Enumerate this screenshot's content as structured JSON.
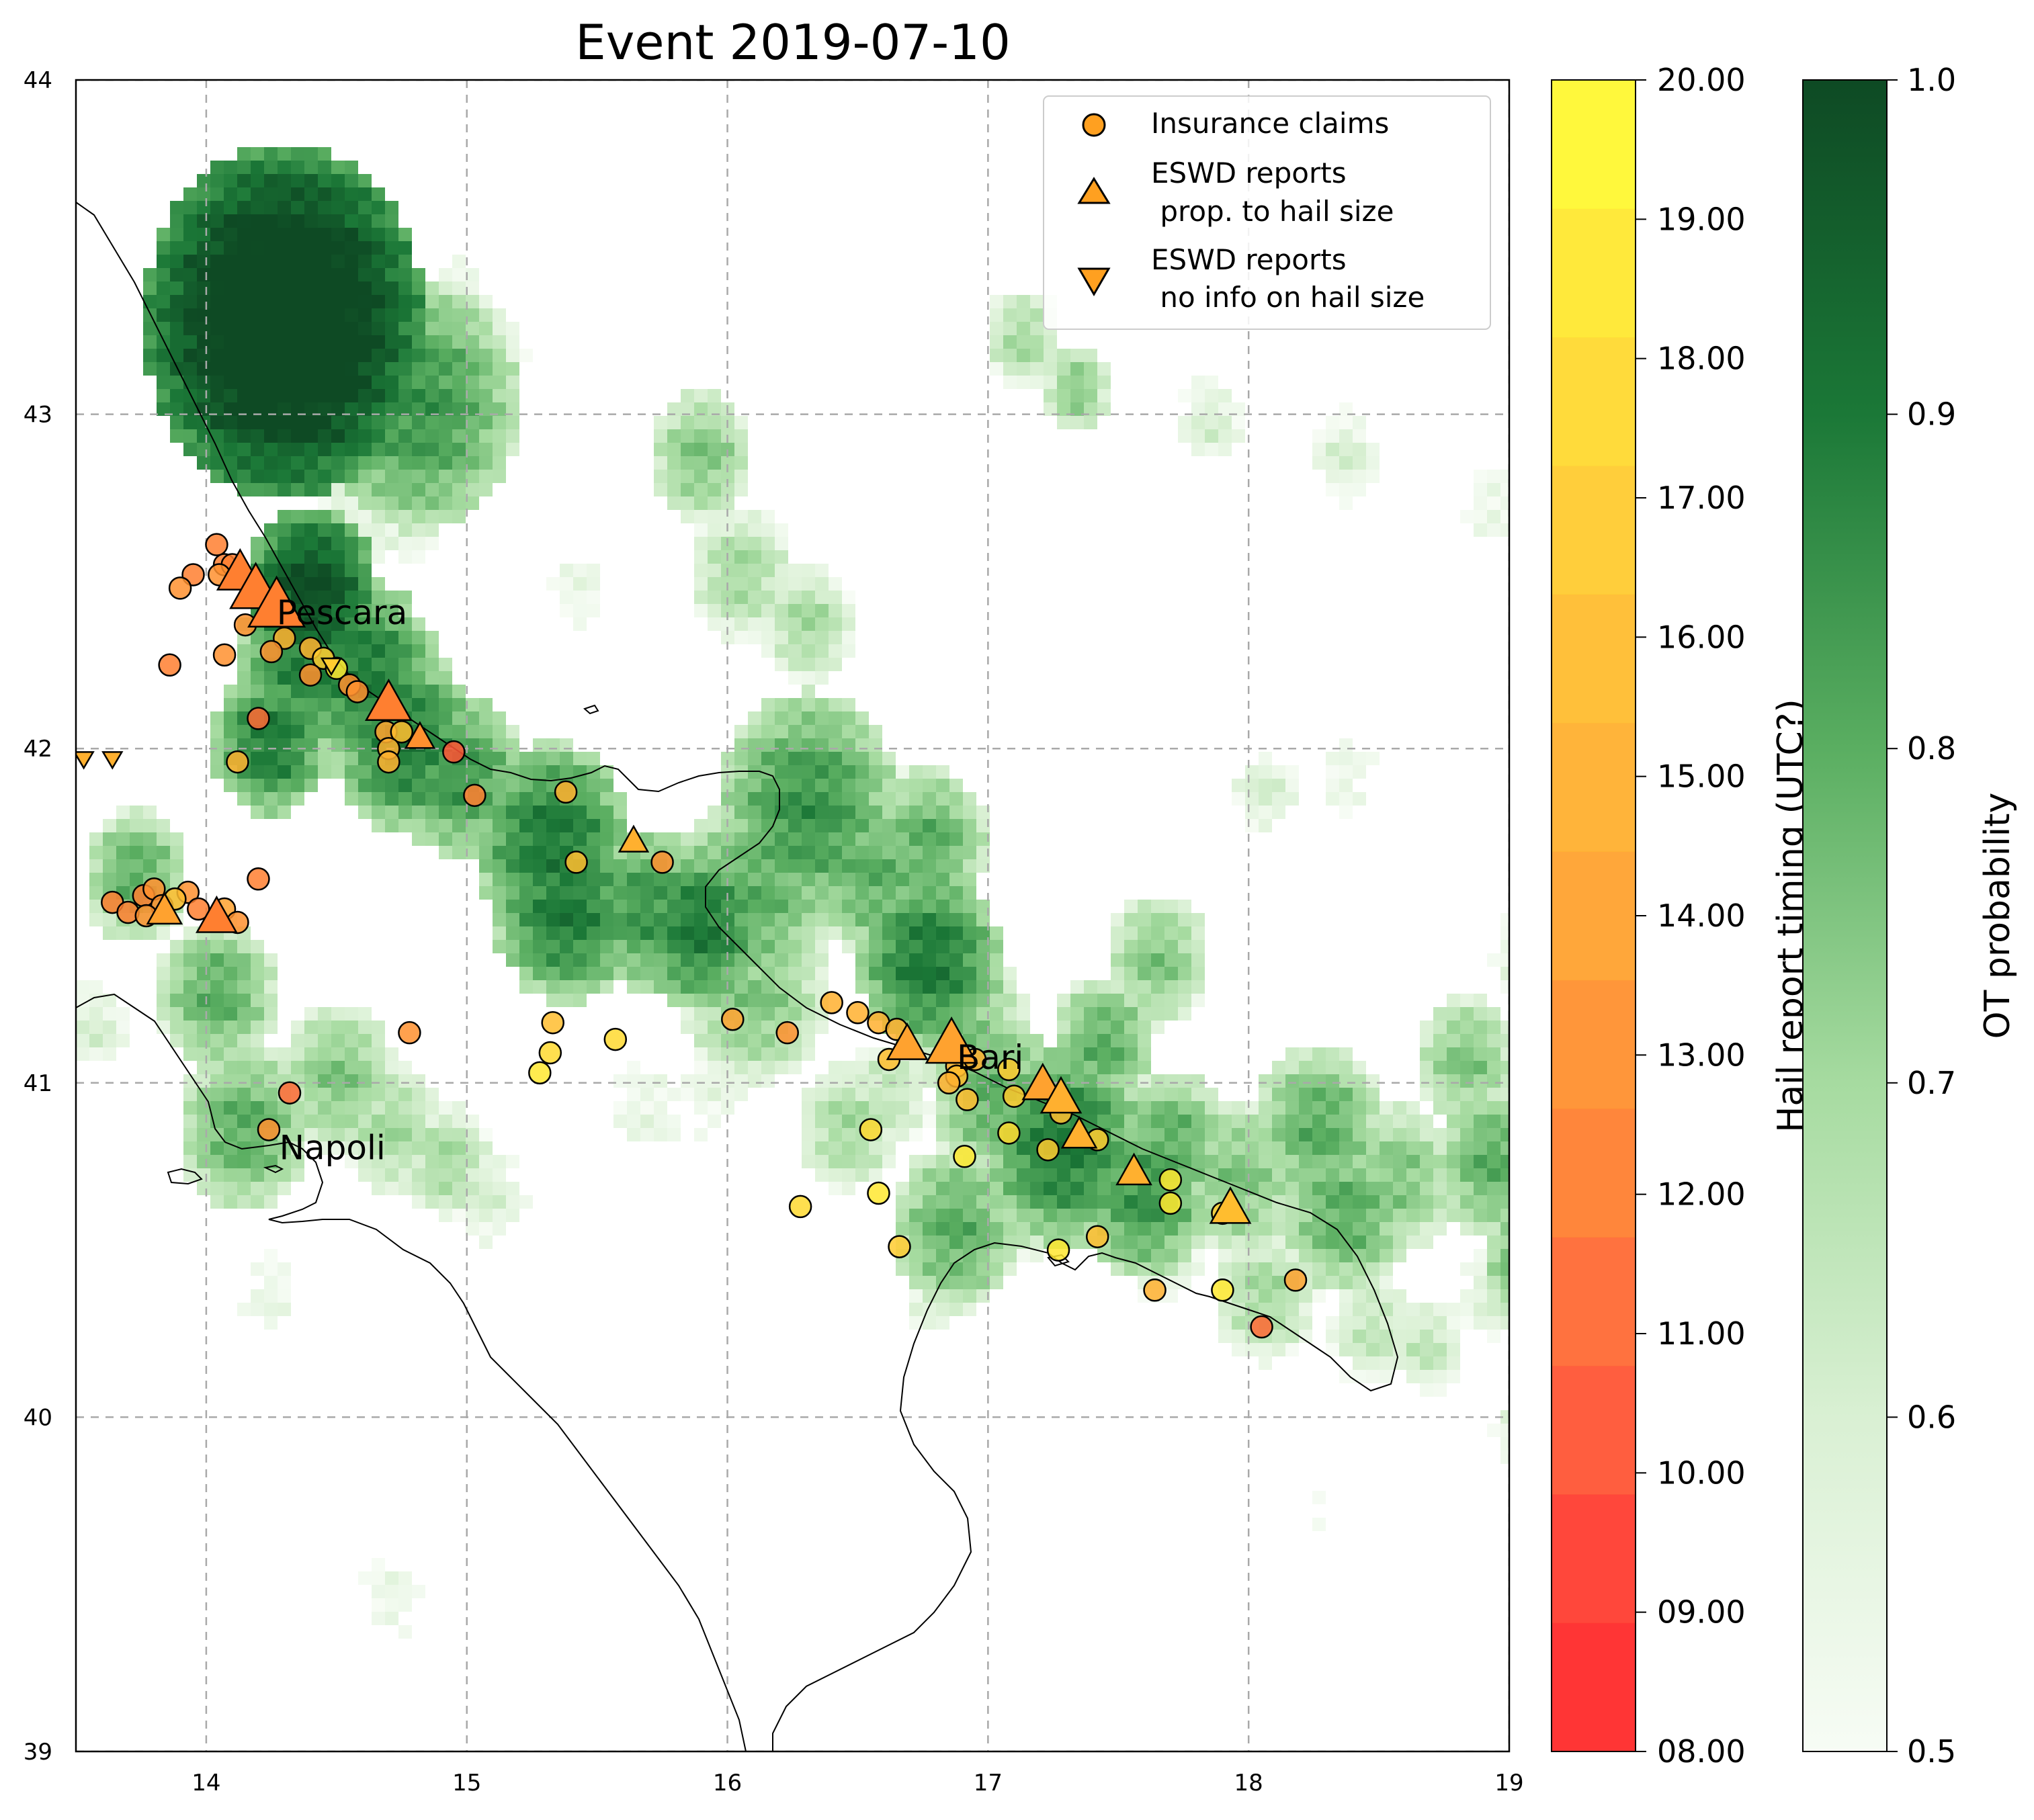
{
  "title": "Event 2019-07-10",
  "map": {
    "lon_ticks": [
      "14",
      "15",
      "16",
      "17",
      "18",
      "19"
    ],
    "lat_ticks": [
      "39",
      "40",
      "41",
      "42",
      "43",
      "44"
    ],
    "lon_range": [
      13.5,
      19
    ],
    "lat_range": [
      39,
      44
    ],
    "cities": [
      {
        "name": "Pescara",
        "lon": 14.26,
        "lat": 42.4
      },
      {
        "name": "Bari",
        "lon": 16.87,
        "lat": 41.07
      },
      {
        "name": "Napoli",
        "lon": 14.27,
        "lat": 40.8
      }
    ]
  },
  "legend": {
    "claims": "Insurance claims",
    "eswd_size_line1": "ESWD reports",
    "eswd_size_line2": " prop. to hail size",
    "eswd_nosize_line1": "ESWD reports",
    "eswd_nosize_line2": " no info on hail size"
  },
  "colorbar_timing": {
    "label": "Hail report timing (UTC?)",
    "ticks": [
      "08.00",
      "09.00",
      "10.00",
      "11.00",
      "12.00",
      "13.00",
      "14.00",
      "15.00",
      "16.00",
      "17.00",
      "18.00",
      "19.00",
      "20.00"
    ],
    "colors": [
      "#ff2a2a",
      "#ff3d30",
      "#ff5535",
      "#ff6a35",
      "#ff7f30",
      "#ff902f",
      "#ffa22f",
      "#ffb02f",
      "#ffbd2f",
      "#ffcb30",
      "#ffd930",
      "#ffe830",
      "#fff832"
    ]
  },
  "colorbar_ot": {
    "label": "OT probability",
    "ticks": [
      "0.5",
      "0.6",
      "0.7",
      "0.8",
      "0.9",
      "1.0"
    ]
  },
  "chart_data": {
    "type": "scatter",
    "claims": [
      [
        14.04,
        42.61,
        11.8
      ],
      [
        14.07,
        42.55,
        12.5
      ],
      [
        14.1,
        42.55,
        12.5
      ],
      [
        13.95,
        42.52,
        12.5
      ],
      [
        14.05,
        42.52,
        12.8
      ],
      [
        13.9,
        42.48,
        12.8
      ],
      [
        14.15,
        42.37,
        13
      ],
      [
        14.3,
        42.33,
        15
      ],
      [
        14.4,
        42.3,
        15
      ],
      [
        14.45,
        42.27,
        17
      ],
      [
        14.5,
        42.24,
        19
      ],
      [
        14.25,
        42.29,
        13.5
      ],
      [
        14.07,
        42.28,
        13
      ],
      [
        13.86,
        42.25,
        12.5
      ],
      [
        14.4,
        42.22,
        13.5
      ],
      [
        14.55,
        42.19,
        13.5
      ],
      [
        14.58,
        42.17,
        13.5
      ],
      [
        14.2,
        42.09,
        11.5
      ],
      [
        14.69,
        42.05,
        14
      ],
      [
        14.75,
        42.05,
        16
      ],
      [
        14.7,
        42.0,
        14.5
      ],
      [
        14.7,
        41.96,
        14.5
      ],
      [
        14.95,
        41.99,
        10.5
      ],
      [
        14.12,
        41.96,
        15
      ],
      [
        15.03,
        41.86,
        12.5
      ],
      [
        15.38,
        41.87,
        14.5
      ],
      [
        15.42,
        41.66,
        15.5
      ],
      [
        15.75,
        41.66,
        13
      ],
      [
        13.64,
        41.54,
        12.5
      ],
      [
        13.7,
        41.51,
        12.5
      ],
      [
        13.76,
        41.56,
        12.5
      ],
      [
        13.8,
        41.58,
        13
      ],
      [
        13.83,
        41.53,
        13.5
      ],
      [
        13.93,
        41.57,
        12.8
      ],
      [
        13.97,
        41.52,
        12.5
      ],
      [
        14.07,
        41.52,
        14
      ],
      [
        14.2,
        41.61,
        12.5
      ],
      [
        14.12,
        41.48,
        13
      ],
      [
        13.77,
        41.5,
        13
      ],
      [
        13.88,
        41.55,
        16
      ],
      [
        16.02,
        41.19,
        14
      ],
      [
        16.4,
        41.24,
        14.5
      ],
      [
        16.5,
        41.21,
        14.5
      ],
      [
        16.58,
        41.18,
        14.5
      ],
      [
        16.65,
        41.16,
        15
      ],
      [
        16.23,
        41.15,
        13.5
      ],
      [
        15.33,
        41.18,
        15.5
      ],
      [
        15.32,
        41.09,
        17.5
      ],
      [
        15.28,
        41.03,
        18.5
      ],
      [
        15.57,
        41.13,
        17.5
      ],
      [
        14.78,
        41.15,
        13.5
      ],
      [
        14.32,
        40.97,
        11
      ],
      [
        14.24,
        40.86,
        13
      ],
      [
        16.62,
        41.07,
        16
      ],
      [
        16.88,
        41.05,
        15
      ],
      [
        16.88,
        41.02,
        16
      ],
      [
        16.95,
        41.07,
        14.5
      ],
      [
        17.08,
        41.04,
        17
      ],
      [
        16.85,
        41.0,
        15
      ],
      [
        16.92,
        40.95,
        15.5
      ],
      [
        17.1,
        40.96,
        17
      ],
      [
        17.28,
        40.91,
        16
      ],
      [
        16.55,
        40.86,
        17.5
      ],
      [
        17.08,
        40.85,
        17.5
      ],
      [
        17.23,
        40.8,
        17
      ],
      [
        16.91,
        40.78,
        18.5
      ],
      [
        17.42,
        40.83,
        17
      ],
      [
        17.7,
        40.71,
        18.5
      ],
      [
        17.7,
        40.64,
        18.5
      ],
      [
        16.58,
        40.67,
        19
      ],
      [
        16.28,
        40.63,
        18
      ],
      [
        17.9,
        40.61,
        17
      ],
      [
        16.66,
        40.51,
        17
      ],
      [
        17.27,
        40.5,
        18.5
      ],
      [
        17.42,
        40.54,
        16
      ],
      [
        17.64,
        40.38,
        15
      ],
      [
        17.9,
        40.38,
        18.5
      ],
      [
        18.18,
        40.41,
        14
      ],
      [
        18.05,
        40.27,
        11
      ]
    ],
    "eswd_size": [
      [
        14.13,
        42.52,
        11.8,
        3
      ],
      [
        14.19,
        42.47,
        11.8,
        3.5
      ],
      [
        14.27,
        42.42,
        11.8,
        4
      ],
      [
        14.7,
        42.13,
        12.5,
        3
      ],
      [
        14.82,
        42.03,
        13.5,
        1.5
      ],
      [
        15.64,
        41.72,
        14.5,
        1.5
      ],
      [
        13.84,
        41.51,
        14,
        2
      ],
      [
        14.04,
        41.49,
        12.5,
        2.5
      ],
      [
        16.69,
        41.11,
        14,
        2.5
      ],
      [
        16.86,
        41.11,
        14,
        3.5
      ],
      [
        17.21,
        40.99,
        14,
        2.5
      ],
      [
        17.28,
        40.95,
        14.5,
        2.5
      ],
      [
        17.35,
        40.84,
        14.5,
        2
      ],
      [
        17.56,
        40.73,
        14.5,
        2
      ],
      [
        17.93,
        40.62,
        15.5,
        2.5
      ]
    ],
    "eswd_nosize": [
      [
        14.48,
        42.25,
        17
      ],
      [
        13.53,
        41.97,
        15
      ],
      [
        13.64,
        41.97,
        15
      ]
    ]
  }
}
